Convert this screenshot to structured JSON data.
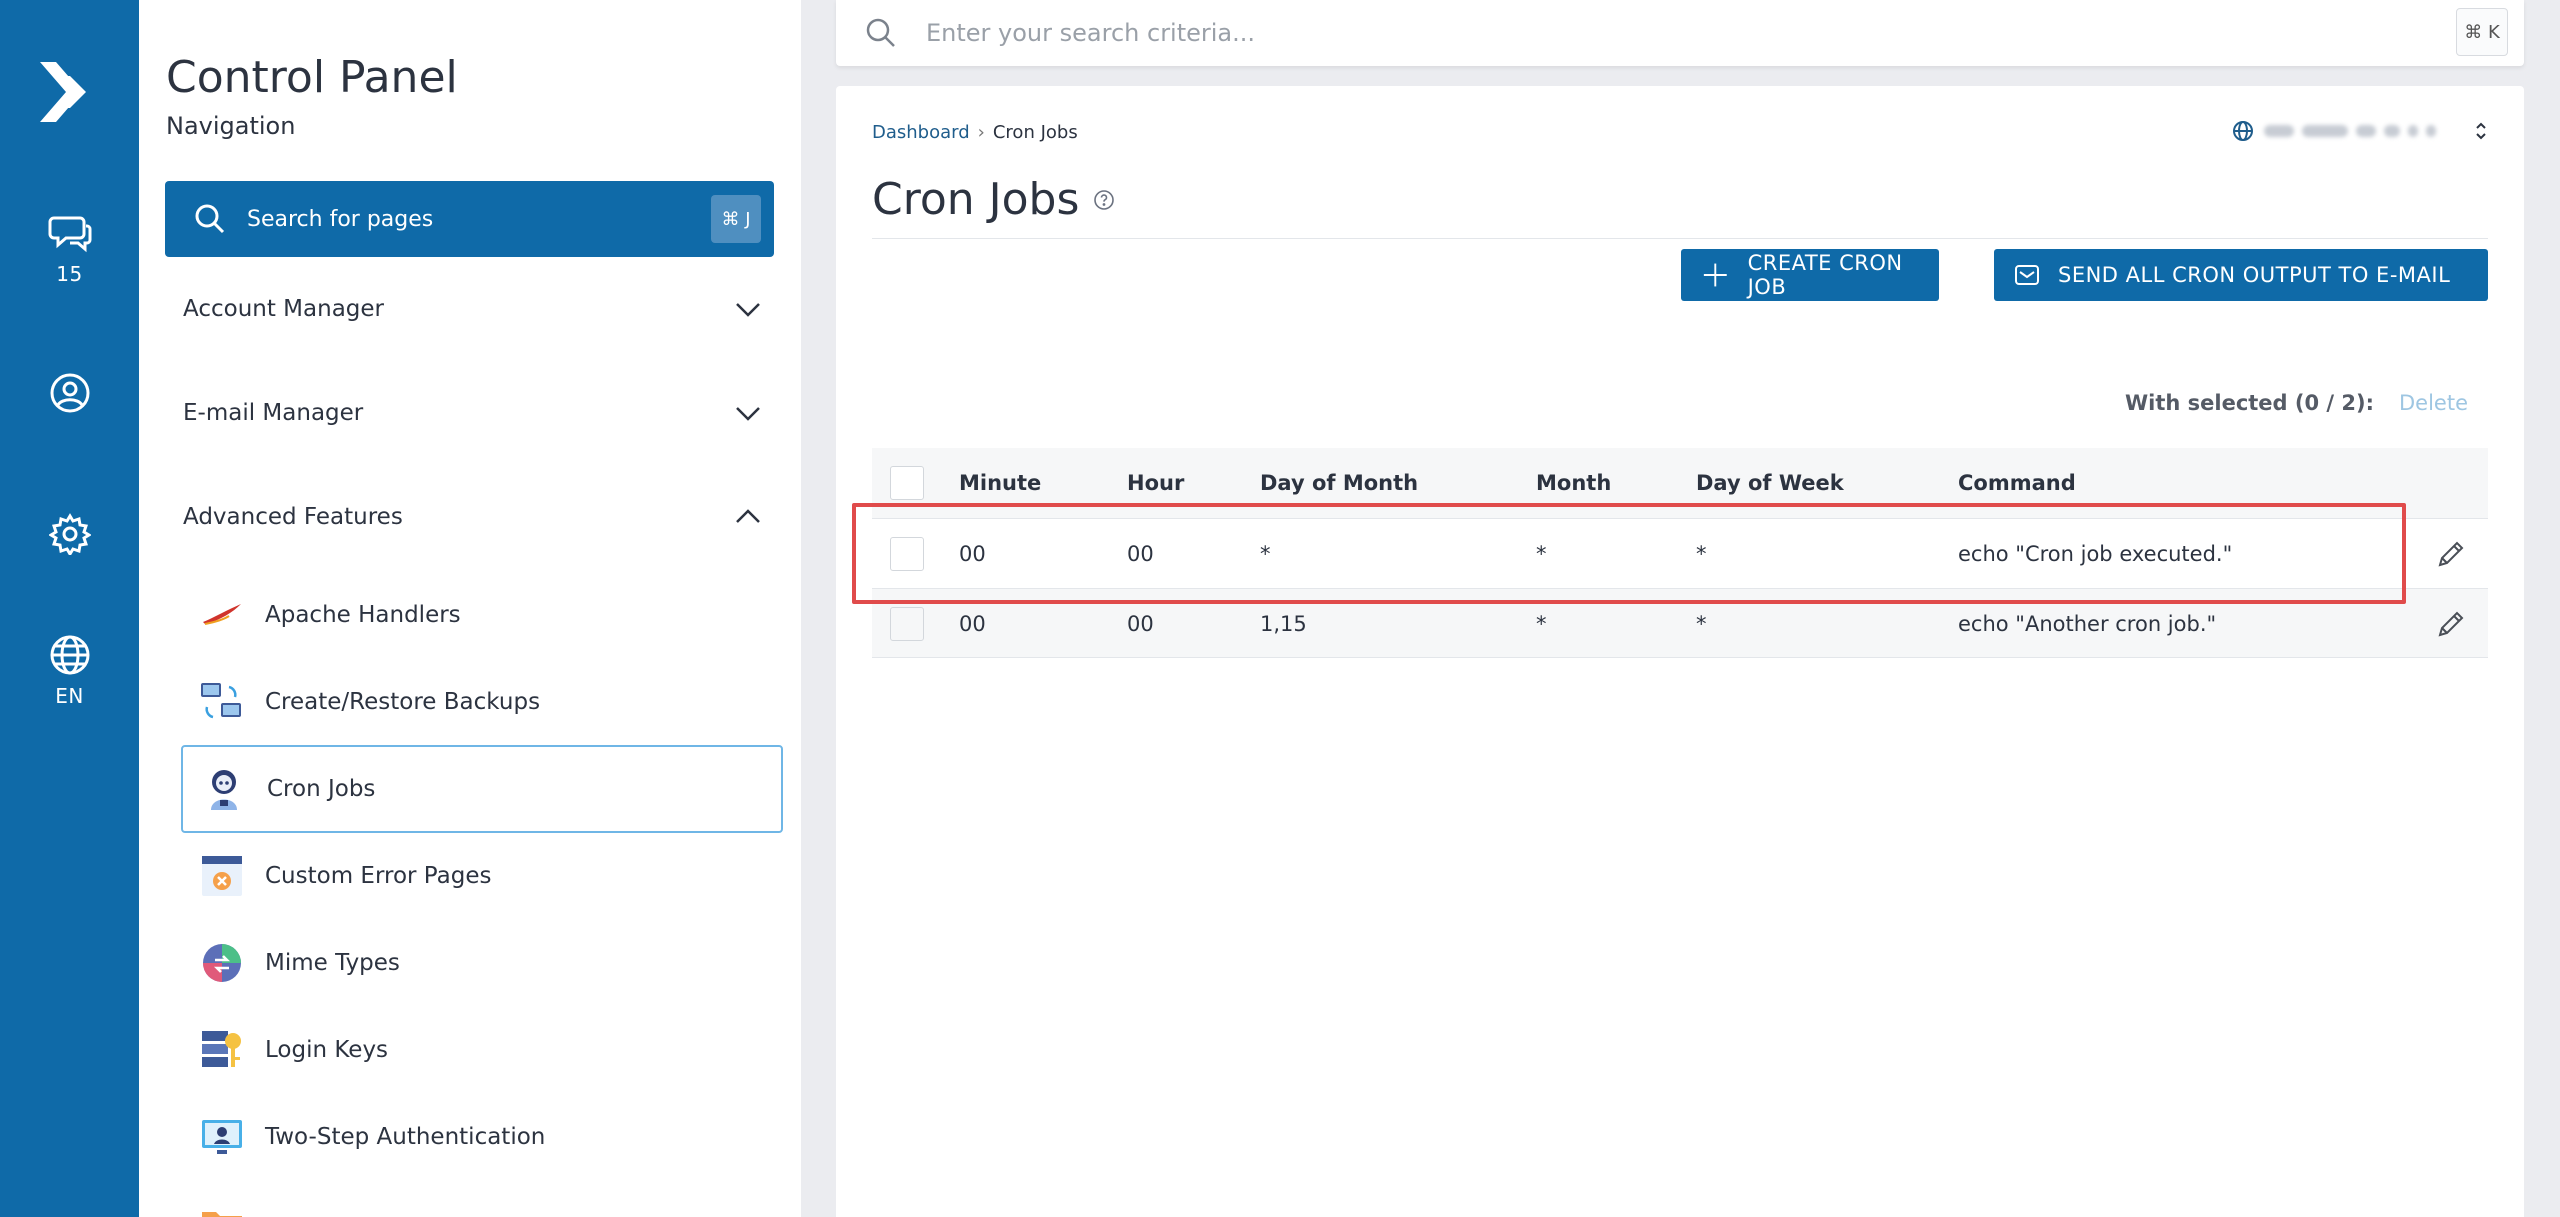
{
  "rail": {
    "messages_count": "15",
    "language": "EN"
  },
  "nav": {
    "title": "Control Panel",
    "subtitle": "Navigation",
    "search_placeholder": "Search for pages",
    "search_shortcut": "⌘ J",
    "groups": [
      {
        "label": "Account Manager",
        "expanded": false
      },
      {
        "label": "E-mail Manager",
        "expanded": false
      },
      {
        "label": "Advanced Features",
        "expanded": true
      }
    ],
    "items": [
      {
        "label": "Apache Handlers",
        "icon": "apache-feather-icon"
      },
      {
        "label": "Create/Restore Backups",
        "icon": "backup-computers-icon"
      },
      {
        "label": "Cron Jobs",
        "icon": "cron-robot-icon",
        "active": true
      },
      {
        "label": "Custom Error Pages",
        "icon": "error-page-icon"
      },
      {
        "label": "Mime Types",
        "icon": "mime-globe-icon"
      },
      {
        "label": "Login Keys",
        "icon": "login-key-icon"
      },
      {
        "label": "Two-Step Authentication",
        "icon": "two-step-monitor-icon"
      }
    ]
  },
  "topbar": {
    "search_placeholder": "Enter your search criteria...",
    "search_shortcut": "⌘ K"
  },
  "main": {
    "breadcrumb": {
      "home": "Dashboard",
      "current": "Cron Jobs"
    },
    "title": "Cron Jobs",
    "buttons": {
      "create": "CREATE CRON JOB",
      "send_all": "SEND ALL CRON OUTPUT TO E-MAIL"
    },
    "with_selected": "With selected (0 / 2):",
    "delete_label": "Delete",
    "table": {
      "headers": [
        "Minute",
        "Hour",
        "Day of Month",
        "Month",
        "Day of Week",
        "Command"
      ],
      "rows": [
        {
          "minute": "00",
          "hour": "00",
          "dom": "*",
          "month": "*",
          "dow": "*",
          "command": "echo \"Cron job executed.\""
        },
        {
          "minute": "00",
          "hour": "00",
          "dom": "1,15",
          "month": "*",
          "dow": "*",
          "command": "echo \"Another cron job.\""
        }
      ]
    }
  },
  "colors": {
    "brand": "#0f6aa8",
    "highlight": "#e04b4b"
  }
}
